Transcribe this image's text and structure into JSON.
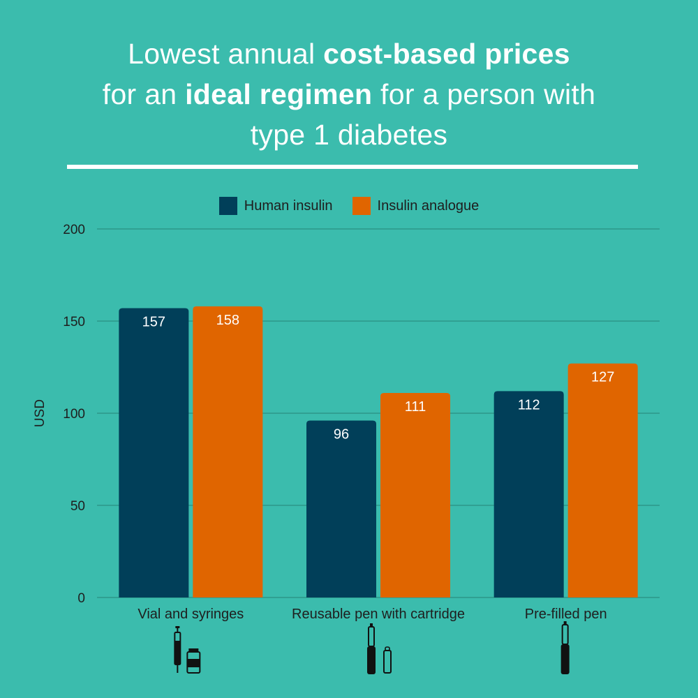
{
  "title": {
    "line1_a": "Lowest annual ",
    "line1_b": "cost-based prices",
    "line2_a": "for an ",
    "line2_b": "ideal regimen",
    "line2_c": " for a person with",
    "line3": "type 1 diabetes"
  },
  "colors": {
    "background": "#3bbcad",
    "human": "#013f59",
    "analogue": "#e06500",
    "grid": "#2a8e82"
  },
  "chart_data": {
    "type": "bar",
    "title": "Lowest annual cost-based prices for an ideal regimen for a person with type 1 diabetes",
    "xlabel": "",
    "ylabel": "USD",
    "ylim": [
      0,
      200
    ],
    "yticks": [
      0,
      50,
      100,
      150,
      200
    ],
    "legend_position": "top-center",
    "categories": [
      "Vial and syringes",
      "Reusable pen with cartridge",
      "Pre-filled pen"
    ],
    "category_icons": [
      "syringe-and-vial-icon",
      "pen-and-cartridge-icon",
      "prefilled-pen-icon"
    ],
    "series": [
      {
        "name": "Human insulin",
        "color": "#013f59",
        "values": [
          157,
          96,
          112
        ]
      },
      {
        "name": "Insulin analogue",
        "color": "#e06500",
        "values": [
          158,
          111,
          127
        ]
      }
    ]
  }
}
